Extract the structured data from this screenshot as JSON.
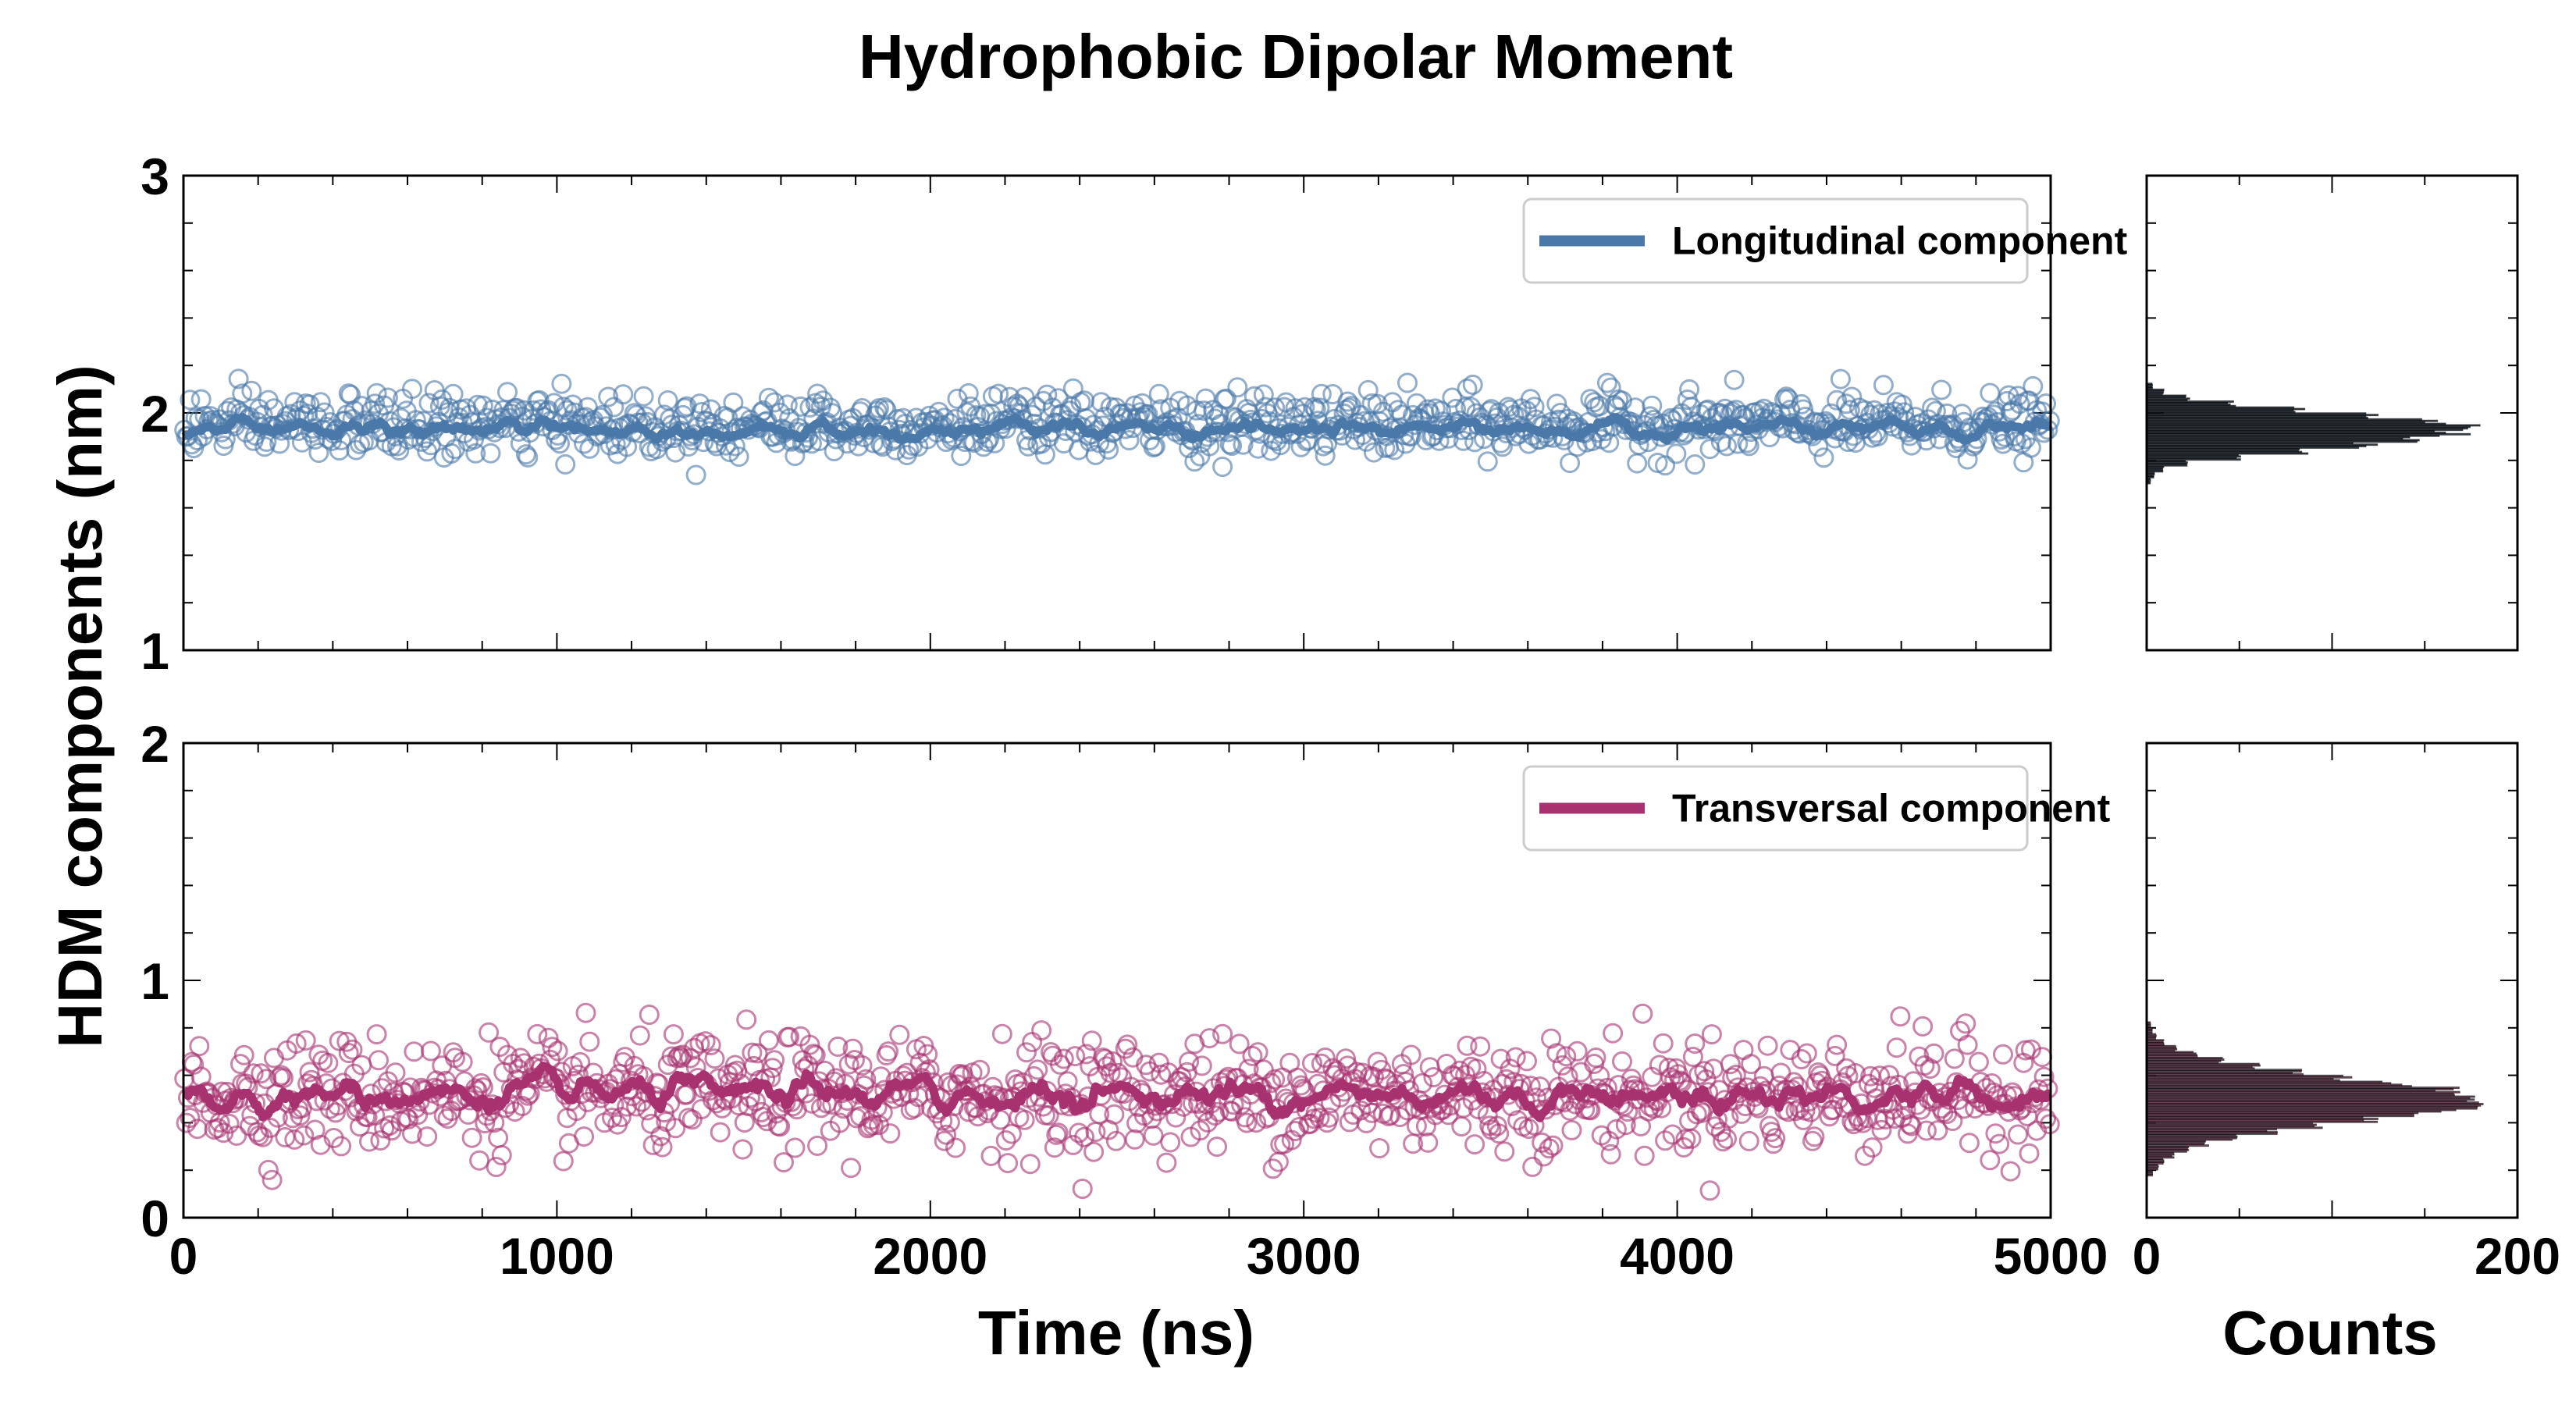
{
  "chart_data": {
    "type": "scatter",
    "title": "Hydrophobic Dipolar Moment",
    "ylabel": "HDM components (nm)",
    "xlabel": "Time (ns)",
    "hist_xlabel": "Counts",
    "x_ticks": [
      "0",
      "1000",
      "2000",
      "3000",
      "4000",
      "5000"
    ],
    "xlim": [
      0,
      5000
    ],
    "hist_ticks": [
      "0",
      "200"
    ],
    "hist_xlim": [
      0,
      200
    ],
    "n_points": 1000,
    "colors": {
      "longitudinal": "#4a78a8",
      "transversal": "#a83270",
      "hist_longitudinal": "#1c2731",
      "hist_transversal": "#6b3a52"
    },
    "panels": [
      {
        "id": "longitudinal",
        "legend": "Longitudinal component",
        "y_ticks": [
          "1",
          "2",
          "3"
        ],
        "ylim": [
          1,
          3
        ],
        "scatter_mean": 1.95,
        "scatter_sd": 0.065,
        "running_mean": 1.93,
        "histogram": {
          "bin_width": 0.025,
          "bins": [
            {
              "y": 1.713,
              "count": 2
            },
            {
              "y": 1.738,
              "count": 4
            },
            {
              "y": 1.763,
              "count": 9
            },
            {
              "y": 1.788,
              "count": 22
            },
            {
              "y": 1.813,
              "count": 48
            },
            {
              "y": 1.838,
              "count": 85
            },
            {
              "y": 1.863,
              "count": 118
            },
            {
              "y": 1.888,
              "count": 146
            },
            {
              "y": 1.913,
              "count": 165
            },
            {
              "y": 1.938,
              "count": 170
            },
            {
              "y": 1.963,
              "count": 156
            },
            {
              "y": 1.988,
              "count": 124
            },
            {
              "y": 2.013,
              "count": 84
            },
            {
              "y": 2.038,
              "count": 46
            },
            {
              "y": 2.063,
              "count": 22
            },
            {
              "y": 2.088,
              "count": 9
            },
            {
              "y": 2.113,
              "count": 3
            }
          ]
        }
      },
      {
        "id": "transversal",
        "legend": "Transversal component",
        "y_ticks": [
          "0",
          "1",
          "2"
        ],
        "ylim": [
          0,
          2
        ],
        "scatter_mean": 0.52,
        "scatter_sd": 0.12,
        "running_mean": 0.52,
        "histogram": {
          "bin_width": 0.025,
          "bins": [
            {
              "y": 0.188,
              "count": 3
            },
            {
              "y": 0.213,
              "count": 6
            },
            {
              "y": 0.238,
              "count": 9
            },
            {
              "y": 0.263,
              "count": 14
            },
            {
              "y": 0.288,
              "count": 22
            },
            {
              "y": 0.313,
              "count": 32
            },
            {
              "y": 0.338,
              "count": 48
            },
            {
              "y": 0.363,
              "count": 68
            },
            {
              "y": 0.388,
              "count": 92
            },
            {
              "y": 0.413,
              "count": 120
            },
            {
              "y": 0.438,
              "count": 150
            },
            {
              "y": 0.463,
              "count": 172
            },
            {
              "y": 0.488,
              "count": 182
            },
            {
              "y": 0.513,
              "count": 175
            },
            {
              "y": 0.538,
              "count": 160
            },
            {
              "y": 0.563,
              "count": 135
            },
            {
              "y": 0.588,
              "count": 106
            },
            {
              "y": 0.613,
              "count": 80
            },
            {
              "y": 0.638,
              "count": 58
            },
            {
              "y": 0.663,
              "count": 40
            },
            {
              "y": 0.688,
              "count": 26
            },
            {
              "y": 0.713,
              "count": 16
            },
            {
              "y": 0.738,
              "count": 9
            },
            {
              "y": 0.763,
              "count": 5
            },
            {
              "y": 0.788,
              "count": 3
            },
            {
              "y": 0.813,
              "count": 2
            }
          ]
        }
      }
    ]
  }
}
